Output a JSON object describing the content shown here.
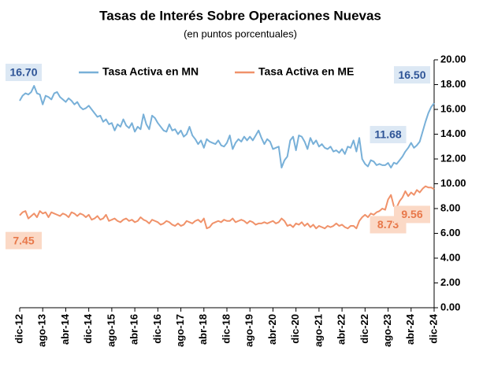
{
  "chart_data": {
    "type": "line",
    "title": "Tasas de Interés Sobre Operaciones Nuevas",
    "subtitle": "(en puntos porcentuales)",
    "categories": [
      "dic-12",
      null,
      null,
      null,
      null,
      null,
      null,
      null,
      "ago-13",
      null,
      null,
      null,
      null,
      null,
      null,
      null,
      "abr-14",
      null,
      null,
      null,
      null,
      null,
      null,
      null,
      "dic-14",
      null,
      null,
      null,
      null,
      null,
      null,
      null,
      "ago-15",
      null,
      null,
      null,
      null,
      null,
      null,
      null,
      "abr-16",
      null,
      null,
      null,
      null,
      null,
      null,
      null,
      "dic-16",
      null,
      null,
      null,
      null,
      null,
      null,
      null,
      "ago-17",
      null,
      null,
      null,
      null,
      null,
      null,
      null,
      "abr-18",
      null,
      null,
      null,
      null,
      null,
      null,
      null,
      "dic-18",
      null,
      null,
      null,
      null,
      null,
      null,
      null,
      "ago-19",
      null,
      null,
      null,
      null,
      null,
      null,
      null,
      "abr-20",
      null,
      null,
      null,
      null,
      null,
      null,
      null,
      "dic-20",
      null,
      null,
      null,
      null,
      null,
      null,
      null,
      "ago-21",
      null,
      null,
      null,
      null,
      null,
      null,
      null,
      "abr-22",
      null,
      null,
      null,
      null,
      null,
      null,
      null,
      "dic-22",
      null,
      null,
      null,
      null,
      null,
      null,
      null,
      "ago-23",
      null,
      null,
      null,
      null,
      null,
      null,
      null,
      "abr-24",
      null,
      null,
      null,
      null,
      null,
      null,
      null,
      "dic-24"
    ],
    "series": [
      {
        "name": "Tasa Activa en MN",
        "color": "#78b0d8",
        "label_color": "#2f5597",
        "label_bg": "#dce8f4",
        "values": [
          16.7,
          17.1,
          17.3,
          17.2,
          17.4,
          17.9,
          17.3,
          17.2,
          16.4,
          17.1,
          17.0,
          16.8,
          17.3,
          17.4,
          17.0,
          16.8,
          16.6,
          16.9,
          16.7,
          16.4,
          16.6,
          16.2,
          16.0,
          16.1,
          16.3,
          16.0,
          15.7,
          15.4,
          15.5,
          15.0,
          15.2,
          14.8,
          14.9,
          14.3,
          14.8,
          14.6,
          15.2,
          14.7,
          14.5,
          14.9,
          14.2,
          14.6,
          14.4,
          15.6,
          14.8,
          14.4,
          15.5,
          15.3,
          14.9,
          14.6,
          14.3,
          14.2,
          14.8,
          14.3,
          14.4,
          14.0,
          14.3,
          13.8,
          14.0,
          14.6,
          13.9,
          13.6,
          13.2,
          13.5,
          12.9,
          13.6,
          13.4,
          13.3,
          13.2,
          13.5,
          13.1,
          13.0,
          13.3,
          13.9,
          12.8,
          13.3,
          13.6,
          13.4,
          13.8,
          13.5,
          13.8,
          13.5,
          13.9,
          14.3,
          13.7,
          13.2,
          13.6,
          13.4,
          12.8,
          12.9,
          13.0,
          11.3,
          11.9,
          12.2,
          13.5,
          13.8,
          12.7,
          13.9,
          13.8,
          13.4,
          12.8,
          13.7,
          13.2,
          13.5,
          13.0,
          13.2,
          12.9,
          12.8,
          13.0,
          12.6,
          12.7,
          12.5,
          12.8,
          12.4,
          13.0,
          12.9,
          13.5,
          12.6,
          13.7,
          12.0,
          11.6,
          11.4,
          11.9,
          11.8,
          11.5,
          11.6,
          11.5,
          11.5,
          11.68,
          11.3,
          11.7,
          11.6,
          11.9,
          12.2,
          12.6,
          12.9,
          13.3,
          12.9,
          13.1,
          13.4,
          14.2,
          15.0,
          15.7,
          16.2,
          16.5
        ],
        "value_labels": [
          "16.70",
          null,
          null,
          null,
          null,
          null,
          null,
          null,
          null,
          null,
          null,
          null,
          null,
          null,
          null,
          null,
          null,
          null,
          null,
          null,
          null,
          null,
          null,
          null,
          null,
          null,
          null,
          null,
          null,
          null,
          null,
          null,
          null,
          null,
          null,
          null,
          null,
          null,
          null,
          null,
          null,
          null,
          null,
          null,
          null,
          null,
          null,
          null,
          null,
          null,
          null,
          null,
          null,
          null,
          null,
          null,
          null,
          null,
          null,
          null,
          null,
          null,
          null,
          null,
          null,
          null,
          null,
          null,
          null,
          null,
          null,
          null,
          null,
          null,
          null,
          null,
          null,
          null,
          null,
          null,
          null,
          null,
          null,
          null,
          null,
          null,
          null,
          null,
          null,
          null,
          null,
          null,
          null,
          null,
          null,
          null,
          null,
          null,
          null,
          null,
          null,
          null,
          null,
          null,
          null,
          null,
          null,
          null,
          null,
          null,
          null,
          null,
          null,
          null,
          null,
          null,
          null,
          null,
          null,
          null,
          null,
          null,
          null,
          null,
          null,
          null,
          null,
          null,
          "11.68",
          null,
          null,
          null,
          null,
          null,
          null,
          null,
          null,
          null,
          null,
          null,
          null,
          null,
          null,
          null,
          "16.50"
        ]
      },
      {
        "name": "Tasa Activa en ME",
        "color": "#f0926a",
        "label_color": "#e8784a",
        "label_bg": "#fbd9c6",
        "values": [
          7.45,
          7.7,
          7.8,
          7.2,
          7.4,
          7.6,
          7.3,
          7.8,
          7.6,
          7.7,
          7.3,
          7.7,
          7.6,
          7.5,
          7.4,
          7.6,
          7.5,
          7.3,
          7.7,
          7.6,
          7.4,
          7.6,
          7.5,
          7.3,
          7.5,
          7.1,
          7.2,
          7.4,
          7.1,
          7.2,
          7.5,
          7.0,
          7.1,
          7.2,
          7.0,
          6.9,
          7.1,
          7.2,
          7.0,
          7.1,
          6.9,
          7.0,
          7.3,
          7.1,
          7.0,
          6.8,
          7.1,
          7.0,
          6.9,
          6.7,
          6.8,
          7.0,
          6.9,
          6.7,
          6.6,
          6.8,
          6.6,
          6.7,
          7.0,
          6.9,
          6.8,
          7.0,
          7.1,
          6.9,
          7.2,
          6.4,
          6.5,
          6.8,
          6.9,
          7.0,
          6.9,
          7.1,
          7.0,
          7.0,
          7.2,
          6.9,
          7.0,
          7.1,
          7.0,
          6.8,
          7.0,
          6.9,
          6.7,
          6.8,
          6.8,
          6.9,
          6.8,
          6.9,
          7.0,
          6.8,
          6.9,
          7.2,
          7.0,
          6.6,
          6.7,
          6.5,
          6.8,
          6.7,
          6.9,
          6.6,
          6.8,
          6.5,
          6.7,
          6.4,
          6.6,
          6.5,
          6.4,
          6.6,
          6.5,
          6.6,
          6.8,
          6.6,
          6.7,
          6.5,
          6.4,
          6.6,
          6.6,
          6.4,
          7.0,
          7.3,
          7.5,
          7.3,
          7.6,
          7.5,
          7.7,
          7.8,
          8.0,
          7.9,
          8.73,
          9.1,
          8.2,
          8.1,
          8.6,
          8.9,
          9.4,
          9.0,
          9.3,
          9.1,
          9.5,
          9.3,
          9.6,
          9.8,
          9.7,
          9.7,
          9.56
        ],
        "value_labels": [
          "7.45",
          null,
          null,
          null,
          null,
          null,
          null,
          null,
          null,
          null,
          null,
          null,
          null,
          null,
          null,
          null,
          null,
          null,
          null,
          null,
          null,
          null,
          null,
          null,
          null,
          null,
          null,
          null,
          null,
          null,
          null,
          null,
          null,
          null,
          null,
          null,
          null,
          null,
          null,
          null,
          null,
          null,
          null,
          null,
          null,
          null,
          null,
          null,
          null,
          null,
          null,
          null,
          null,
          null,
          null,
          null,
          null,
          null,
          null,
          null,
          null,
          null,
          null,
          null,
          null,
          null,
          null,
          null,
          null,
          null,
          null,
          null,
          null,
          null,
          null,
          null,
          null,
          null,
          null,
          null,
          null,
          null,
          null,
          null,
          null,
          null,
          null,
          null,
          null,
          null,
          null,
          null,
          null,
          null,
          null,
          null,
          null,
          null,
          null,
          null,
          null,
          null,
          null,
          null,
          null,
          null,
          null,
          null,
          null,
          null,
          null,
          null,
          null,
          null,
          null,
          null,
          null,
          null,
          null,
          null,
          null,
          null,
          null,
          null,
          null,
          null,
          null,
          null,
          "8.73",
          null,
          null,
          null,
          null,
          null,
          null,
          null,
          null,
          null,
          null,
          null,
          null,
          null,
          null,
          null,
          "9.56"
        ]
      }
    ],
    "ylim": [
      0,
      20
    ],
    "yticks": [
      {
        "value": 0,
        "label": "0.00"
      },
      {
        "value": 2,
        "label": "2.00"
      },
      {
        "value": 4,
        "label": "4.00"
      },
      {
        "value": 6,
        "label": "6.00"
      },
      {
        "value": 8,
        "label": "8.00"
      },
      {
        "value": 10,
        "label": "10.00"
      },
      {
        "value": 12,
        "label": "12.00"
      },
      {
        "value": 14,
        "label": "14.00"
      },
      {
        "value": 16,
        "label": "16.00"
      },
      {
        "value": 18,
        "label": "18.00"
      },
      {
        "value": 20,
        "label": "20.00"
      }
    ],
    "y_axis_side": "right",
    "grid": false,
    "legend": "top"
  }
}
